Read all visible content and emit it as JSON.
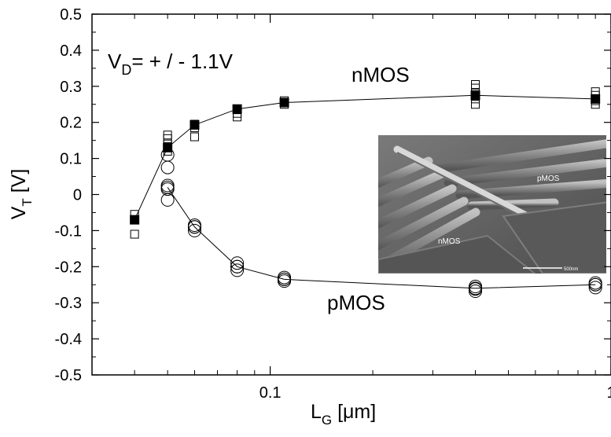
{
  "chart_data": {
    "type": "scatter",
    "xscale": "log",
    "xlim": [
      0.03,
      1
    ],
    "ylim": [
      -0.5,
      0.5
    ],
    "xlabel": {
      "main": "L",
      "sub": "G",
      "unit": " [μm]"
    },
    "ylabel": {
      "main": "V",
      "sub": "T",
      "unit": " [V]"
    },
    "x_ticks": [
      {
        "value": 0.1,
        "label": "0.1"
      },
      {
        "value": 1,
        "label": "1"
      }
    ],
    "y_ticks": [
      {
        "value": 0.5,
        "label": "0.5"
      },
      {
        "value": 0.4,
        "label": "0.4"
      },
      {
        "value": 0.3,
        "label": "0.3"
      },
      {
        "value": 0.2,
        "label": "0.2"
      },
      {
        "value": 0.1,
        "label": "0.1"
      },
      {
        "value": 0,
        "label": "0"
      },
      {
        "value": -0.1,
        "label": "-0.1"
      },
      {
        "value": -0.2,
        "label": "-0.2"
      },
      {
        "value": -0.3,
        "label": "-0.3"
      },
      {
        "value": -0.4,
        "label": "-0.4"
      },
      {
        "value": -0.5,
        "label": "-0.5"
      }
    ],
    "grid": false,
    "annotations": {
      "condition": {
        "main": "V",
        "sub": "D",
        "rest": "= + / -  1.1V"
      },
      "nmos": "nMOS",
      "pmos": "pMOS"
    },
    "inset": {
      "labels": [
        "nMOS",
        "pMOS"
      ],
      "scale_bar": "500nm"
    },
    "series": [
      {
        "marker": "square-open",
        "points": [
          [
            0.04,
            -0.11
          ],
          [
            0.04,
            -0.055
          ],
          [
            0.05,
            0.12
          ],
          [
            0.05,
            0.14
          ],
          [
            0.05,
            0.155
          ],
          [
            0.05,
            0.165
          ],
          [
            0.06,
            0.16
          ],
          [
            0.06,
            0.185
          ],
          [
            0.06,
            0.195
          ],
          [
            0.08,
            0.215
          ],
          [
            0.08,
            0.225
          ],
          [
            0.08,
            0.235
          ],
          [
            0.11,
            0.25
          ],
          [
            0.11,
            0.255
          ],
          [
            0.11,
            0.26
          ],
          [
            0.4,
            0.25
          ],
          [
            0.4,
            0.265
          ],
          [
            0.4,
            0.28
          ],
          [
            0.4,
            0.295
          ],
          [
            0.4,
            0.305
          ],
          [
            0.9,
            0.25
          ],
          [
            0.9,
            0.26
          ],
          [
            0.9,
            0.275
          ],
          [
            0.9,
            0.285
          ]
        ]
      },
      {
        "marker": "square-filled",
        "connected": true,
        "points": [
          [
            0.04,
            -0.07
          ],
          [
            0.05,
            0.13
          ],
          [
            0.06,
            0.193
          ],
          [
            0.08,
            0.237
          ],
          [
            0.11,
            0.255
          ],
          [
            0.4,
            0.275
          ],
          [
            0.9,
            0.265
          ]
        ]
      },
      {
        "marker": "circle-open",
        "points": [
          [
            0.05,
            0.11
          ],
          [
            0.05,
            0.075
          ],
          [
            0.05,
            0.025
          ],
          [
            0.05,
            0.015
          ],
          [
            0.05,
            -0.015
          ],
          [
            0.06,
            -0.085
          ],
          [
            0.06,
            -0.09
          ],
          [
            0.06,
            -0.1
          ],
          [
            0.08,
            -0.19
          ],
          [
            0.08,
            -0.2
          ],
          [
            0.08,
            -0.21
          ],
          [
            0.11,
            -0.23
          ],
          [
            0.11,
            -0.235
          ],
          [
            0.11,
            -0.24
          ],
          [
            0.4,
            -0.255
          ],
          [
            0.4,
            -0.262
          ],
          [
            0.4,
            -0.268
          ],
          [
            0.9,
            -0.245
          ],
          [
            0.9,
            -0.25
          ],
          [
            0.9,
            -0.258
          ]
        ]
      },
      {
        "marker": "circle-open",
        "connected": true,
        "points": [
          [
            0.05,
            0.02
          ],
          [
            0.06,
            -0.09
          ],
          [
            0.08,
            -0.2
          ],
          [
            0.11,
            -0.235
          ],
          [
            0.4,
            -0.26
          ],
          [
            0.9,
            -0.25
          ]
        ]
      }
    ]
  }
}
